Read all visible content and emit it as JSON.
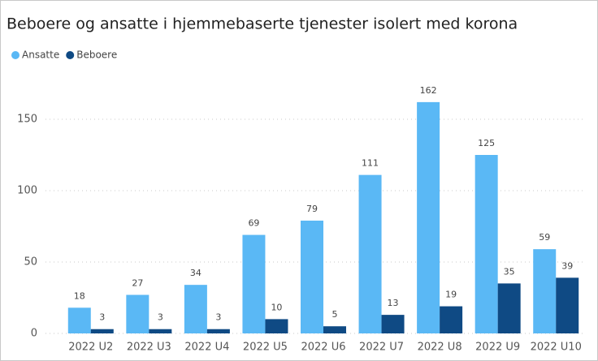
{
  "chart_data": {
    "type": "bar",
    "title": "Beboere og ansatte i hjemmebaserte tjenester isolert med korona",
    "categories": [
      "2022 U2",
      "2022 U3",
      "2022 U4",
      "2022 U5",
      "2022 U6",
      "2022 U7",
      "2022 U8",
      "2022 U9",
      "2022 U10"
    ],
    "series": [
      {
        "name": "Ansatte",
        "color": "#5ab8f5",
        "values": [
          18,
          27,
          34,
          69,
          79,
          111,
          162,
          125,
          59
        ]
      },
      {
        "name": "Beboere",
        "color": "#0f4a84",
        "values": [
          3,
          3,
          3,
          10,
          5,
          13,
          19,
          35,
          39
        ]
      }
    ],
    "ylim": [
      0,
      175
    ],
    "yticks": [
      0,
      50,
      100,
      150
    ],
    "grid": true
  }
}
